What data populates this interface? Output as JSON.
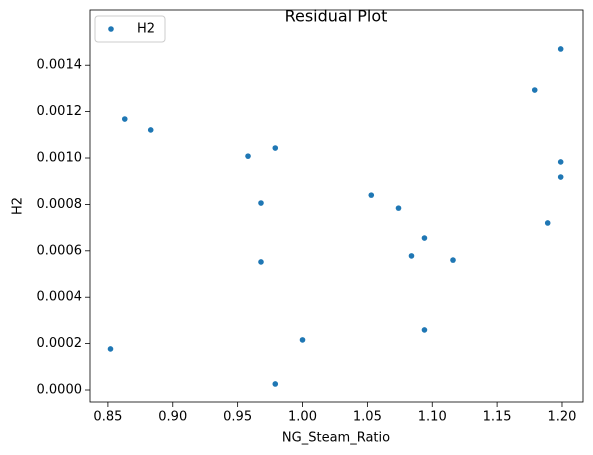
{
  "chart_data": {
    "type": "scatter",
    "title": "Residual Plot",
    "x_label": "NG_Steam_Ratio",
    "y_label": "H2",
    "series": [
      {
        "name": "H2",
        "color": "#1f77b4",
        "x": [
          0.852,
          0.863,
          0.883,
          0.958,
          0.979,
          0.968,
          0.968,
          0.979,
          1.0,
          1.053,
          1.074,
          1.094,
          1.084,
          1.094,
          1.116,
          1.179,
          1.199,
          1.199,
          1.199,
          1.189
        ],
        "values": [
          0.000177,
          0.001168,
          0.001121,
          0.001008,
          0.001043,
          0.000806,
          0.000552,
          2.6e-05,
          0.000216,
          0.00084,
          0.000784,
          0.000655,
          0.000578,
          0.000259,
          0.00056,
          0.001293,
          0.00147,
          0.000983,
          0.000918,
          0.00072
        ]
      }
    ],
    "xlim": [
      0.8362,
      1.2162
    ],
    "xticks": [
      0.85,
      {
        "value": 0.9,
        "label": "0.90"
      },
      0.95,
      {
        "value": 1.0,
        "label": "1.00"
      },
      1.05,
      {
        "value": 1.1,
        "label": "1.10"
      },
      1.15,
      {
        "value": 1.2,
        "label": "1.20"
      }
    ],
    "ylim": [
      -5.17e-05,
      0.001638
    ],
    "yticks": [
      {
        "value": 0,
        "label": "0.0000"
      },
      {
        "value": 0.0002,
        "label": "0.0002"
      },
      {
        "value": 0.0004,
        "label": "0.0004"
      },
      {
        "value": 0.0006,
        "label": "0.0006"
      },
      {
        "value": 0.0008,
        "label": "0.0008"
      },
      {
        "value": 0.001,
        "label": "0.0010"
      },
      {
        "value": 0.0012,
        "label": "0.0012"
      },
      {
        "value": 0.0014,
        "label": "0.0014"
      }
    ],
    "legend": "upper left",
    "grid": false
  }
}
